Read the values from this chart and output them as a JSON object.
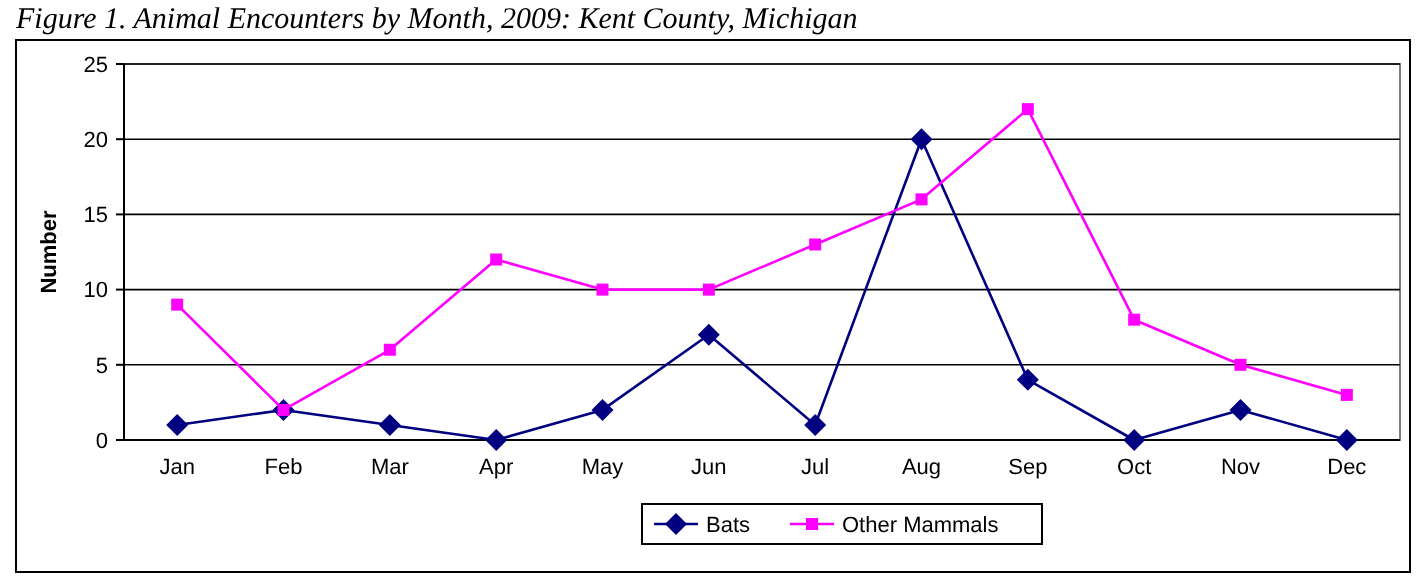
{
  "chart_data": {
    "type": "line",
    "title": "Figure 1. Animal Encounters by Month, 2009: Kent County, Michigan",
    "ylabel": "Number",
    "categories": [
      "Jan",
      "Feb",
      "Mar",
      "Apr",
      "May",
      "Jun",
      "Jul",
      "Aug",
      "Sep",
      "Oct",
      "Nov",
      "Dec"
    ],
    "series": [
      {
        "name": "Bats",
        "color": "#000080",
        "marker": "diamond",
        "values": [
          1,
          2,
          1,
          0,
          2,
          7,
          1,
          20,
          4,
          0,
          2,
          0
        ]
      },
      {
        "name": "Other Mammals",
        "color": "#ff00ff",
        "marker": "square",
        "values": [
          9,
          2,
          6,
          12,
          10,
          10,
          13,
          16,
          22,
          8,
          5,
          3
        ]
      }
    ],
    "ylim": [
      0,
      25
    ],
    "yticks": [
      0,
      5,
      10,
      15,
      20,
      25
    ],
    "grid": "y",
    "legend": "bottom"
  }
}
